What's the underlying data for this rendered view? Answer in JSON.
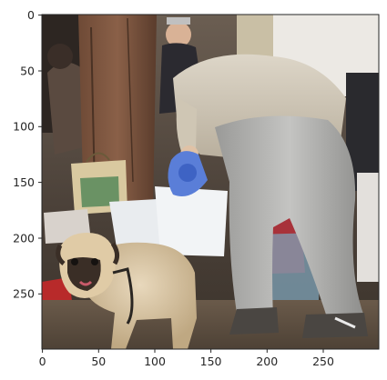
{
  "figure": {
    "description_icon": "photo-icon",
    "x_ticks": [
      "0",
      "50",
      "100",
      "150",
      "200",
      "250"
    ],
    "y_ticks": [
      "0",
      "50",
      "100",
      "150",
      "200",
      "250"
    ],
    "colors": {
      "axis": "#262626",
      "background": "#ffffff"
    }
  }
}
